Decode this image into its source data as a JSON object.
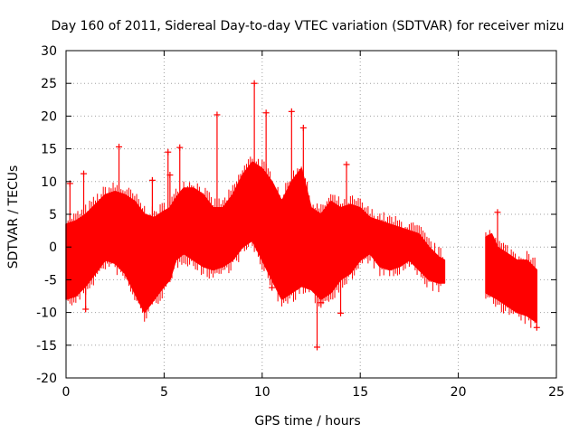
{
  "chart_data": {
    "type": "scatter",
    "title": "Day 160 of 2011, Sidereal Day-to-day VTEC variation (SDTVAR) for receiver mizu",
    "xlabel": "GPS time / hours",
    "ylabel": "SDTVAR / TECUs",
    "xlim": [
      0,
      25
    ],
    "ylim": [
      -20,
      30
    ],
    "xticks": [
      0,
      5,
      10,
      15,
      20,
      25
    ],
    "yticks": [
      -20,
      -15,
      -10,
      -5,
      0,
      5,
      10,
      15,
      20,
      25,
      30
    ],
    "grid": true,
    "marker": "plus",
    "color": "#ff0000",
    "series": [
      {
        "name": "SDTVAR",
        "envelope_x": [
          0.0,
          0.5,
          1.0,
          1.5,
          2.0,
          2.5,
          3.0,
          3.5,
          4.0,
          4.5,
          5.0,
          5.3,
          5.6,
          6.0,
          6.5,
          7.0,
          7.5,
          8.0,
          8.5,
          9.0,
          9.5,
          10.0,
          10.5,
          11.0,
          11.5,
          12.0,
          12.5,
          13.0,
          13.5,
          14.0,
          14.5,
          15.0,
          15.5,
          16.0,
          16.5,
          17.0,
          17.5,
          18.0,
          18.5,
          19.0,
          19.3,
          21.4,
          21.7,
          22.0,
          22.5,
          23.0,
          23.5,
          24.0
        ],
        "envelope_upper": [
          3.5,
          4.0,
          5.0,
          6.5,
          8.0,
          8.5,
          8.0,
          7.0,
          5.0,
          4.5,
          5.5,
          6.0,
          7.5,
          9.0,
          9.0,
          8.0,
          6.0,
          6.0,
          8.0,
          11.0,
          13.0,
          12.0,
          10.0,
          7.0,
          10.0,
          12.0,
          6.0,
          5.0,
          7.0,
          6.0,
          6.5,
          6.0,
          4.5,
          4.0,
          3.5,
          3.0,
          2.5,
          2.0,
          0.0,
          -1.5,
          -2.0,
          1.5,
          2.0,
          0.0,
          -1.0,
          -2.0,
          -2.0,
          -3.5
        ],
        "envelope_lower": [
          -8.0,
          -7.5,
          -6.0,
          -4.0,
          -2.0,
          -2.5,
          -4.0,
          -7.0,
          -10.0,
          -8.0,
          -6.0,
          -5.0,
          -2.0,
          -1.0,
          -2.0,
          -3.0,
          -3.5,
          -3.0,
          -2.0,
          0.0,
          1.0,
          -2.0,
          -5.0,
          -8.0,
          -7.0,
          -6.0,
          -6.5,
          -8.0,
          -7.0,
          -5.0,
          -4.0,
          -2.0,
          -1.0,
          -3.0,
          -3.5,
          -3.0,
          -2.0,
          -3.5,
          -5.0,
          -5.5,
          -5.5,
          -7.0,
          -7.5,
          -8.0,
          -9.0,
          -10.0,
          -10.5,
          -11.5
        ],
        "outliers": [
          {
            "x": 0.2,
            "y": 9.7
          },
          {
            "x": 0.9,
            "y": 11.2
          },
          {
            "x": 1.0,
            "y": -9.5
          },
          {
            "x": 2.7,
            "y": 15.3
          },
          {
            "x": 4.4,
            "y": 10.2
          },
          {
            "x": 5.2,
            "y": 14.5
          },
          {
            "x": 5.3,
            "y": 11.0
          },
          {
            "x": 5.8,
            "y": 15.2
          },
          {
            "x": 7.7,
            "y": 20.2
          },
          {
            "x": 9.6,
            "y": 25.0
          },
          {
            "x": 10.2,
            "y": 20.5
          },
          {
            "x": 10.5,
            "y": -6.2
          },
          {
            "x": 11.5,
            "y": 20.7
          },
          {
            "x": 12.1,
            "y": 18.2
          },
          {
            "x": 12.8,
            "y": -15.3
          },
          {
            "x": 13.0,
            "y": -8.5
          },
          {
            "x": 14.0,
            "y": -10.1
          },
          {
            "x": 14.3,
            "y": 12.6
          },
          {
            "x": 22.0,
            "y": 5.3
          },
          {
            "x": 24.0,
            "y": -12.3
          }
        ]
      }
    ]
  }
}
